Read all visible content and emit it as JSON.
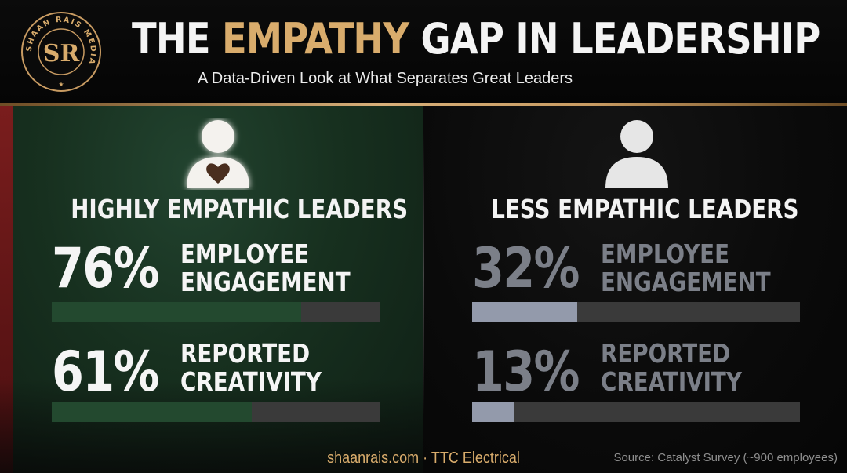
{
  "header": {
    "title_prefix": "THE ",
    "title_accent": "EMPATHY",
    "title_suffix": " GAP IN LEADERSHIP",
    "subtitle": "A Data-Driven Look at What Separates Great Leaders",
    "logo_text": "SHAAN RAIS MEDIA",
    "logo_initials": "SR"
  },
  "colors": {
    "accent_gold": "#d9ac6c",
    "left_panel_green": "#17301f",
    "left_bar_fill": "#23492f",
    "right_bar_fill": "#939aab",
    "bar_track": "#3a3a3a",
    "red_edge": "#7a1d1d"
  },
  "icons": {
    "left": "person-with-heart-icon",
    "right": "person-icon"
  },
  "chart_data": [
    {
      "type": "bar",
      "title": "HIGHLY EMPATHIC LEADERS",
      "categories": [
        "EMPLOYEE ENGAGEMENT",
        "REPORTED CREATIVITY"
      ],
      "values": [
        76,
        61
      ],
      "value_labels": [
        "76%",
        "61%"
      ],
      "metric_lines": [
        [
          "EMPLOYEE",
          "ENGAGEMENT"
        ],
        [
          "REPORTED",
          "CREATIVITY"
        ]
      ],
      "ylim": [
        0,
        100
      ],
      "orientation": "horizontal"
    },
    {
      "type": "bar",
      "title": "LESS EMPATHIC LEADERS",
      "categories": [
        "EMPLOYEE ENGAGEMENT",
        "REPORTED CREATIVITY"
      ],
      "values": [
        32,
        13
      ],
      "value_labels": [
        "32%",
        "13%"
      ],
      "metric_lines": [
        [
          "EMPLOYEE",
          "ENGAGEMENT"
        ],
        [
          "REPORTED",
          "CREATIVITY"
        ]
      ],
      "ylim": [
        0,
        100
      ],
      "orientation": "horizontal"
    }
  ],
  "footer": {
    "center": "shaanrais.com · TTC Electrical",
    "source": "Source: Catalyst Survey (~900 employees)"
  }
}
